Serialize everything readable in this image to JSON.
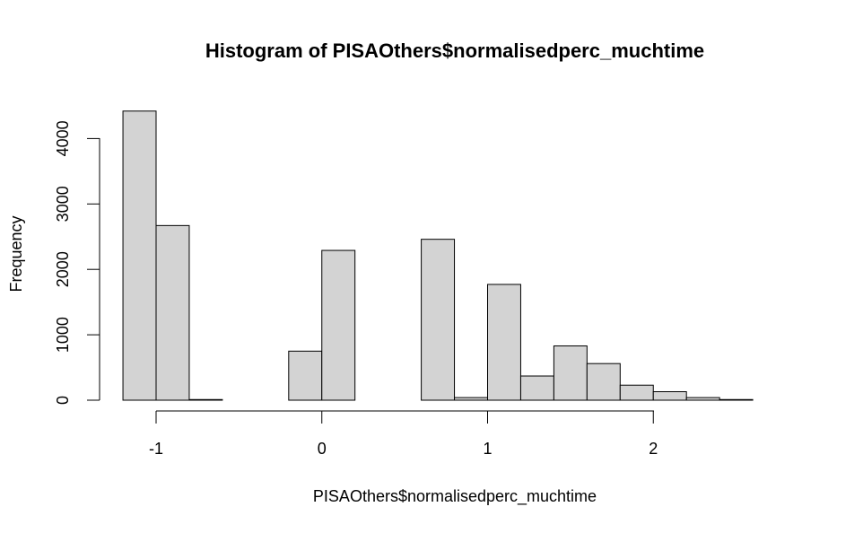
{
  "chart_data": {
    "type": "bar",
    "title": "Histogram of PISAOthers$normalisedperc_muchtime",
    "xlabel": "PISAOthers$normalisedperc_muchtime",
    "ylabel": "Frequency",
    "bin_edges": [
      -1.2,
      -1.0,
      -0.8,
      -0.6,
      -0.4,
      -0.2,
      0.0,
      0.2,
      0.4,
      0.6,
      0.8,
      1.0,
      1.2,
      1.4,
      1.6,
      1.8,
      2.0,
      2.2,
      2.4,
      2.6
    ],
    "values": [
      4420,
      2670,
      10,
      0,
      0,
      750,
      2290,
      0,
      0,
      2460,
      40,
      1770,
      370,
      830,
      560,
      230,
      130,
      40,
      10
    ],
    "xlim": [
      -1.2,
      2.8
    ],
    "ylim": [
      0,
      4420
    ],
    "x_ticks": [
      -1,
      0,
      1,
      2
    ],
    "x_tick_labels": [
      "-1",
      "0",
      "1",
      "2"
    ],
    "y_ticks": [
      0,
      1000,
      2000,
      3000,
      4000
    ],
    "y_tick_labels": [
      "0",
      "1000",
      "2000",
      "3000",
      "4000"
    ],
    "bar_color": "#d3d3d3",
    "grid": false,
    "legend": "none"
  }
}
